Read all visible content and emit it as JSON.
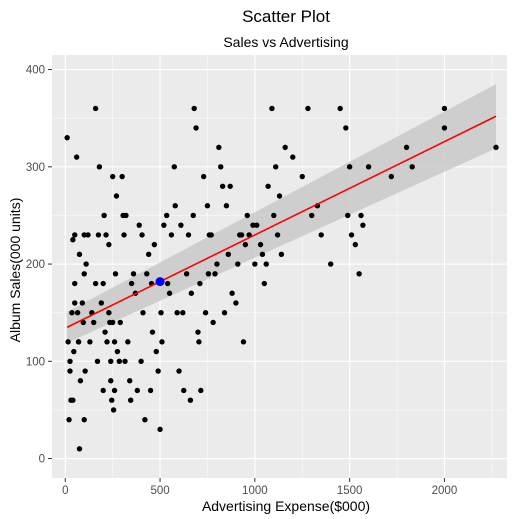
{
  "chart_data": {
    "type": "scatter",
    "title": "Scatter Plot",
    "subtitle": "Sales vs Advertising",
    "xlabel": "Advertising Expense($000)",
    "ylabel": "Album Sales(000 units)",
    "xlim": [
      -70,
      2330
    ],
    "ylim": [
      -20,
      415
    ],
    "x_ticks": [
      0,
      500,
      1000,
      1500,
      2000
    ],
    "y_ticks": [
      0,
      100,
      200,
      300,
      400
    ],
    "grid": true,
    "colors": {
      "panel": "#ebebeb",
      "grid_major": "#ffffff",
      "points": "#000000",
      "fit_line": "#ff0000",
      "confidence_band": "#c9c9c9",
      "highlight": "#0000ff"
    },
    "regression": {
      "x": [
        10,
        2272
      ],
      "y": [
        135,
        352
      ],
      "ci_upper": [
        151,
        385
      ],
      "ci_lower": [
        119,
        319
      ]
    },
    "highlight_point": {
      "x": 500,
      "y": 182
    },
    "points": [
      [
        10,
        330
      ],
      [
        15,
        120
      ],
      [
        20,
        40
      ],
      [
        25,
        90
      ],
      [
        25,
        100
      ],
      [
        30,
        60
      ],
      [
        35,
        150
      ],
      [
        40,
        60
      ],
      [
        40,
        225
      ],
      [
        45,
        110
      ],
      [
        50,
        230
      ],
      [
        50,
        180
      ],
      [
        50,
        160
      ],
      [
        60,
        310
      ],
      [
        65,
        150
      ],
      [
        70,
        120
      ],
      [
        70,
        120
      ],
      [
        75,
        10
      ],
      [
        75,
        210
      ],
      [
        80,
        80
      ],
      [
        90,
        160
      ],
      [
        95,
        140
      ],
      [
        100,
        190
      ],
      [
        100,
        230
      ],
      [
        100,
        40
      ],
      [
        105,
        90
      ],
      [
        110,
        200
      ],
      [
        120,
        230
      ],
      [
        130,
        120
      ],
      [
        140,
        150
      ],
      [
        150,
        140
      ],
      [
        160,
        360
      ],
      [
        160,
        180
      ],
      [
        170,
        100
      ],
      [
        175,
        230
      ],
      [
        180,
        300
      ],
      [
        190,
        160
      ],
      [
        200,
        70
      ],
      [
        200,
        180
      ],
      [
        205,
        250
      ],
      [
        210,
        130
      ],
      [
        215,
        230
      ],
      [
        220,
        120
      ],
      [
        230,
        220
      ],
      [
        230,
        150
      ],
      [
        235,
        140
      ],
      [
        240,
        100
      ],
      [
        240,
        80
      ],
      [
        245,
        60
      ],
      [
        250,
        140
      ],
      [
        250,
        290
      ],
      [
        255,
        50
      ],
      [
        260,
        120
      ],
      [
        260,
        70
      ],
      [
        265,
        190
      ],
      [
        270,
        270
      ],
      [
        275,
        110
      ],
      [
        285,
        100
      ],
      [
        290,
        140
      ],
      [
        300,
        290
      ],
      [
        305,
        250
      ],
      [
        310,
        230
      ],
      [
        315,
        100
      ],
      [
        320,
        250
      ],
      [
        330,
        120
      ],
      [
        340,
        80
      ],
      [
        345,
        60
      ],
      [
        350,
        180
      ],
      [
        360,
        190
      ],
      [
        370,
        170
      ],
      [
        380,
        70
      ],
      [
        390,
        240
      ],
      [
        400,
        100
      ],
      [
        405,
        230
      ],
      [
        410,
        150
      ],
      [
        420,
        40
      ],
      [
        430,
        190
      ],
      [
        440,
        210
      ],
      [
        450,
        70
      ],
      [
        455,
        180
      ],
      [
        460,
        130
      ],
      [
        470,
        220
      ],
      [
        480,
        110
      ],
      [
        490,
        90
      ],
      [
        500,
        30
      ],
      [
        505,
        150
      ],
      [
        510,
        120
      ],
      [
        520,
        240
      ],
      [
        535,
        250
      ],
      [
        540,
        180
      ],
      [
        550,
        170
      ],
      [
        560,
        230
      ],
      [
        575,
        300
      ],
      [
        580,
        260
      ],
      [
        590,
        150
      ],
      [
        600,
        90
      ],
      [
        610,
        240
      ],
      [
        620,
        150
      ],
      [
        625,
        70
      ],
      [
        640,
        190
      ],
      [
        650,
        230
      ],
      [
        660,
        60
      ],
      [
        665,
        170
      ],
      [
        675,
        250
      ],
      [
        680,
        360
      ],
      [
        690,
        340
      ],
      [
        700,
        130
      ],
      [
        705,
        120
      ],
      [
        710,
        180
      ],
      [
        715,
        70
      ],
      [
        730,
        290
      ],
      [
        740,
        150
      ],
      [
        750,
        260
      ],
      [
        755,
        190
      ],
      [
        760,
        230
      ],
      [
        770,
        230
      ],
      [
        780,
        140
      ],
      [
        790,
        190
      ],
      [
        800,
        200
      ],
      [
        810,
        320
      ],
      [
        820,
        300
      ],
      [
        830,
        280
      ],
      [
        840,
        150
      ],
      [
        850,
        260
      ],
      [
        860,
        210
      ],
      [
        870,
        280
      ],
      [
        880,
        170
      ],
      [
        900,
        160
      ],
      [
        910,
        200
      ],
      [
        920,
        230
      ],
      [
        930,
        230
      ],
      [
        940,
        120
      ],
      [
        950,
        220
      ],
      [
        960,
        250
      ],
      [
        970,
        230
      ],
      [
        990,
        240
      ],
      [
        1000,
        200
      ],
      [
        1010,
        240
      ],
      [
        1030,
        220
      ],
      [
        1040,
        210
      ],
      [
        1050,
        180
      ],
      [
        1060,
        200
      ],
      [
        1070,
        280
      ],
      [
        1090,
        360
      ],
      [
        1100,
        250
      ],
      [
        1110,
        300
      ],
      [
        1120,
        230
      ],
      [
        1130,
        270
      ],
      [
        1140,
        210
      ],
      [
        1160,
        320
      ],
      [
        1200,
        310
      ],
      [
        1250,
        290
      ],
      [
        1280,
        360
      ],
      [
        1300,
        250
      ],
      [
        1330,
        260
      ],
      [
        1350,
        230
      ],
      [
        1400,
        200
      ],
      [
        1450,
        360
      ],
      [
        1480,
        340
      ],
      [
        1490,
        250
      ],
      [
        1500,
        300
      ],
      [
        1510,
        230
      ],
      [
        1530,
        220
      ],
      [
        1550,
        190
      ],
      [
        1560,
        250
      ],
      [
        1570,
        240
      ],
      [
        1600,
        300
      ],
      [
        1720,
        290
      ],
      [
        1800,
        320
      ],
      [
        1830,
        300
      ],
      [
        2000,
        360
      ],
      [
        2000,
        340
      ],
      [
        2272,
        320
      ]
    ]
  }
}
